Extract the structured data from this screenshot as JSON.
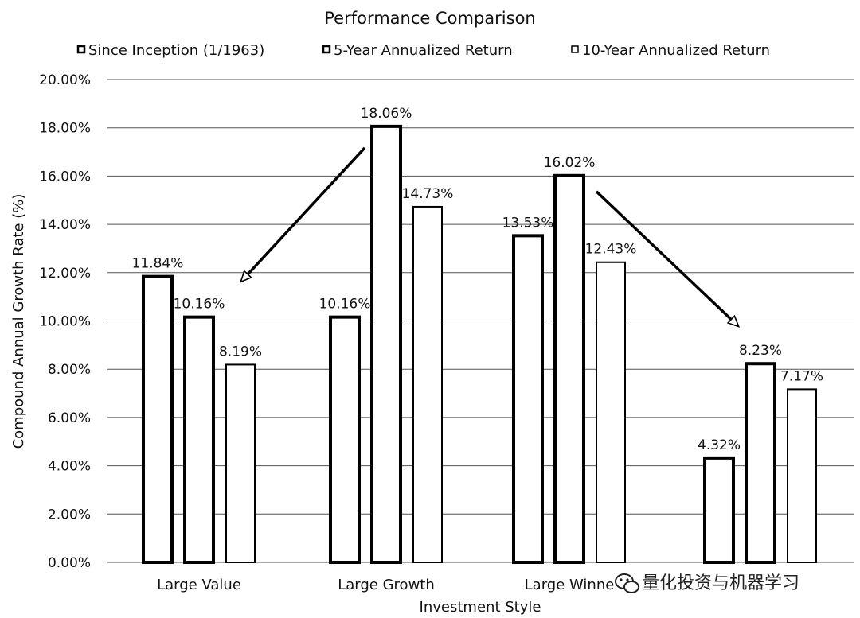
{
  "chart_data": {
    "type": "bar",
    "title": "Performance Comparison",
    "xlabel": "Investment Style",
    "ylabel": "Compound Annual Growth Rate (%)",
    "ylim": [
      0,
      20
    ],
    "y_ticks": [
      "0.00%",
      "2.00%",
      "4.00%",
      "6.00%",
      "8.00%",
      "10.00%",
      "12.00%",
      "14.00%",
      "16.00%",
      "18.00%",
      "20.00%"
    ],
    "grid": "horizontal",
    "legend_position": "top",
    "categories": [
      "Large Value",
      "Large Growth",
      "Large Winne",
      ""
    ],
    "series": [
      {
        "name": "Since Inception (1/1963)",
        "values": [
          11.84,
          10.16,
          13.53,
          4.32
        ],
        "labels": [
          "11.84%",
          "10.16%",
          "13.53%",
          "4.32%"
        ],
        "stroke_width": 4
      },
      {
        "name": "5-Year Annualized Return",
        "values": [
          10.16,
          18.06,
          16.02,
          8.23
        ],
        "labels": [
          "10.16%",
          "18.06%",
          "16.02%",
          "8.23%"
        ],
        "stroke_width": 4
      },
      {
        "name": "10-Year Annualized Return",
        "values": [
          8.19,
          14.73,
          12.43,
          7.17
        ],
        "labels": [
          "8.19%",
          "14.73%",
          "12.43%",
          "7.17%"
        ],
        "stroke_width": 2
      }
    ],
    "annotations": [
      {
        "type": "arrow",
        "from": "Large Growth",
        "to": "Large Value"
      },
      {
        "type": "arrow",
        "from": "Large Winne",
        "to": ""
      }
    ],
    "colors": {
      "bar_fill": "#ffffff",
      "bar_stroke": "#000000",
      "grid": "#555555"
    }
  },
  "watermark": {
    "text": "量化投资与机器学习",
    "icon": "wechat-icon"
  }
}
